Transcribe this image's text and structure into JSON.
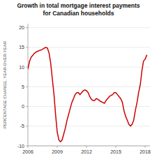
{
  "chart_data": {
    "type": "line",
    "title": "Growth in total mortgage interest payments",
    "subtitle": "for Canadian households",
    "y_label": "PERCENTAGE CHANGE, YEAR-OVER-YEAR",
    "x": [
      2006.0,
      2006.17,
      2006.33,
      2006.5,
      2006.67,
      2006.83,
      2007.0,
      2007.17,
      2007.33,
      2007.5,
      2007.67,
      2007.83,
      2008.0,
      2008.17,
      2008.33,
      2008.5,
      2008.67,
      2008.83,
      2009.0,
      2009.17,
      2009.33,
      2009.5,
      2009.67,
      2009.83,
      2010.0,
      2010.17,
      2010.33,
      2010.5,
      2010.67,
      2010.83,
      2011.0,
      2011.17,
      2011.33,
      2011.5,
      2011.67,
      2011.83,
      2012.0,
      2012.17,
      2012.33,
      2012.5,
      2012.67,
      2012.83,
      2013.0,
      2013.17,
      2013.33,
      2013.5,
      2013.67,
      2013.83,
      2014.0,
      2014.17,
      2014.33,
      2014.5,
      2014.67,
      2014.83,
      2015.0,
      2015.17,
      2015.33,
      2015.5,
      2015.67,
      2015.83,
      2016.0,
      2016.17,
      2016.33,
      2016.5,
      2016.67,
      2016.83,
      2017.0,
      2017.17,
      2017.33,
      2017.5,
      2017.67,
      2017.83,
      2018.0,
      2018.17
    ],
    "values": [
      9.5,
      11.5,
      12.5,
      13.0,
      13.5,
      13.8,
      14.0,
      14.2,
      14.3,
      14.5,
      14.8,
      15.0,
      14.8,
      13.5,
      11.0,
      7.0,
      3.0,
      -2.0,
      -6.5,
      -8.5,
      -9.0,
      -8.5,
      -7.0,
      -5.5,
      -3.5,
      -2.0,
      -0.5,
      1.0,
      2.0,
      3.0,
      3.5,
      3.5,
      3.0,
      3.5,
      4.0,
      4.2,
      4.0,
      3.5,
      2.5,
      1.8,
      1.5,
      1.5,
      2.0,
      1.8,
      1.5,
      1.2,
      1.0,
      0.8,
      1.5,
      2.0,
      2.5,
      2.8,
      3.0,
      3.5,
      3.5,
      3.0,
      2.5,
      2.0,
      1.0,
      -1.0,
      -2.5,
      -3.5,
      -4.5,
      -5.0,
      -4.5,
      -3.5,
      -1.0,
      1.0,
      3.5,
      5.5,
      9.0,
      11.5,
      12.0,
      13.0
    ],
    "color": "#cc0000",
    "xlim": [
      2006,
      2018.5
    ],
    "ylim": [
      -10,
      21
    ],
    "xticks": [
      2006,
      2009,
      2012,
      2015,
      2018
    ],
    "yticks": [
      -10,
      -5,
      0,
      5,
      10,
      15,
      20
    ],
    "grid": true
  }
}
